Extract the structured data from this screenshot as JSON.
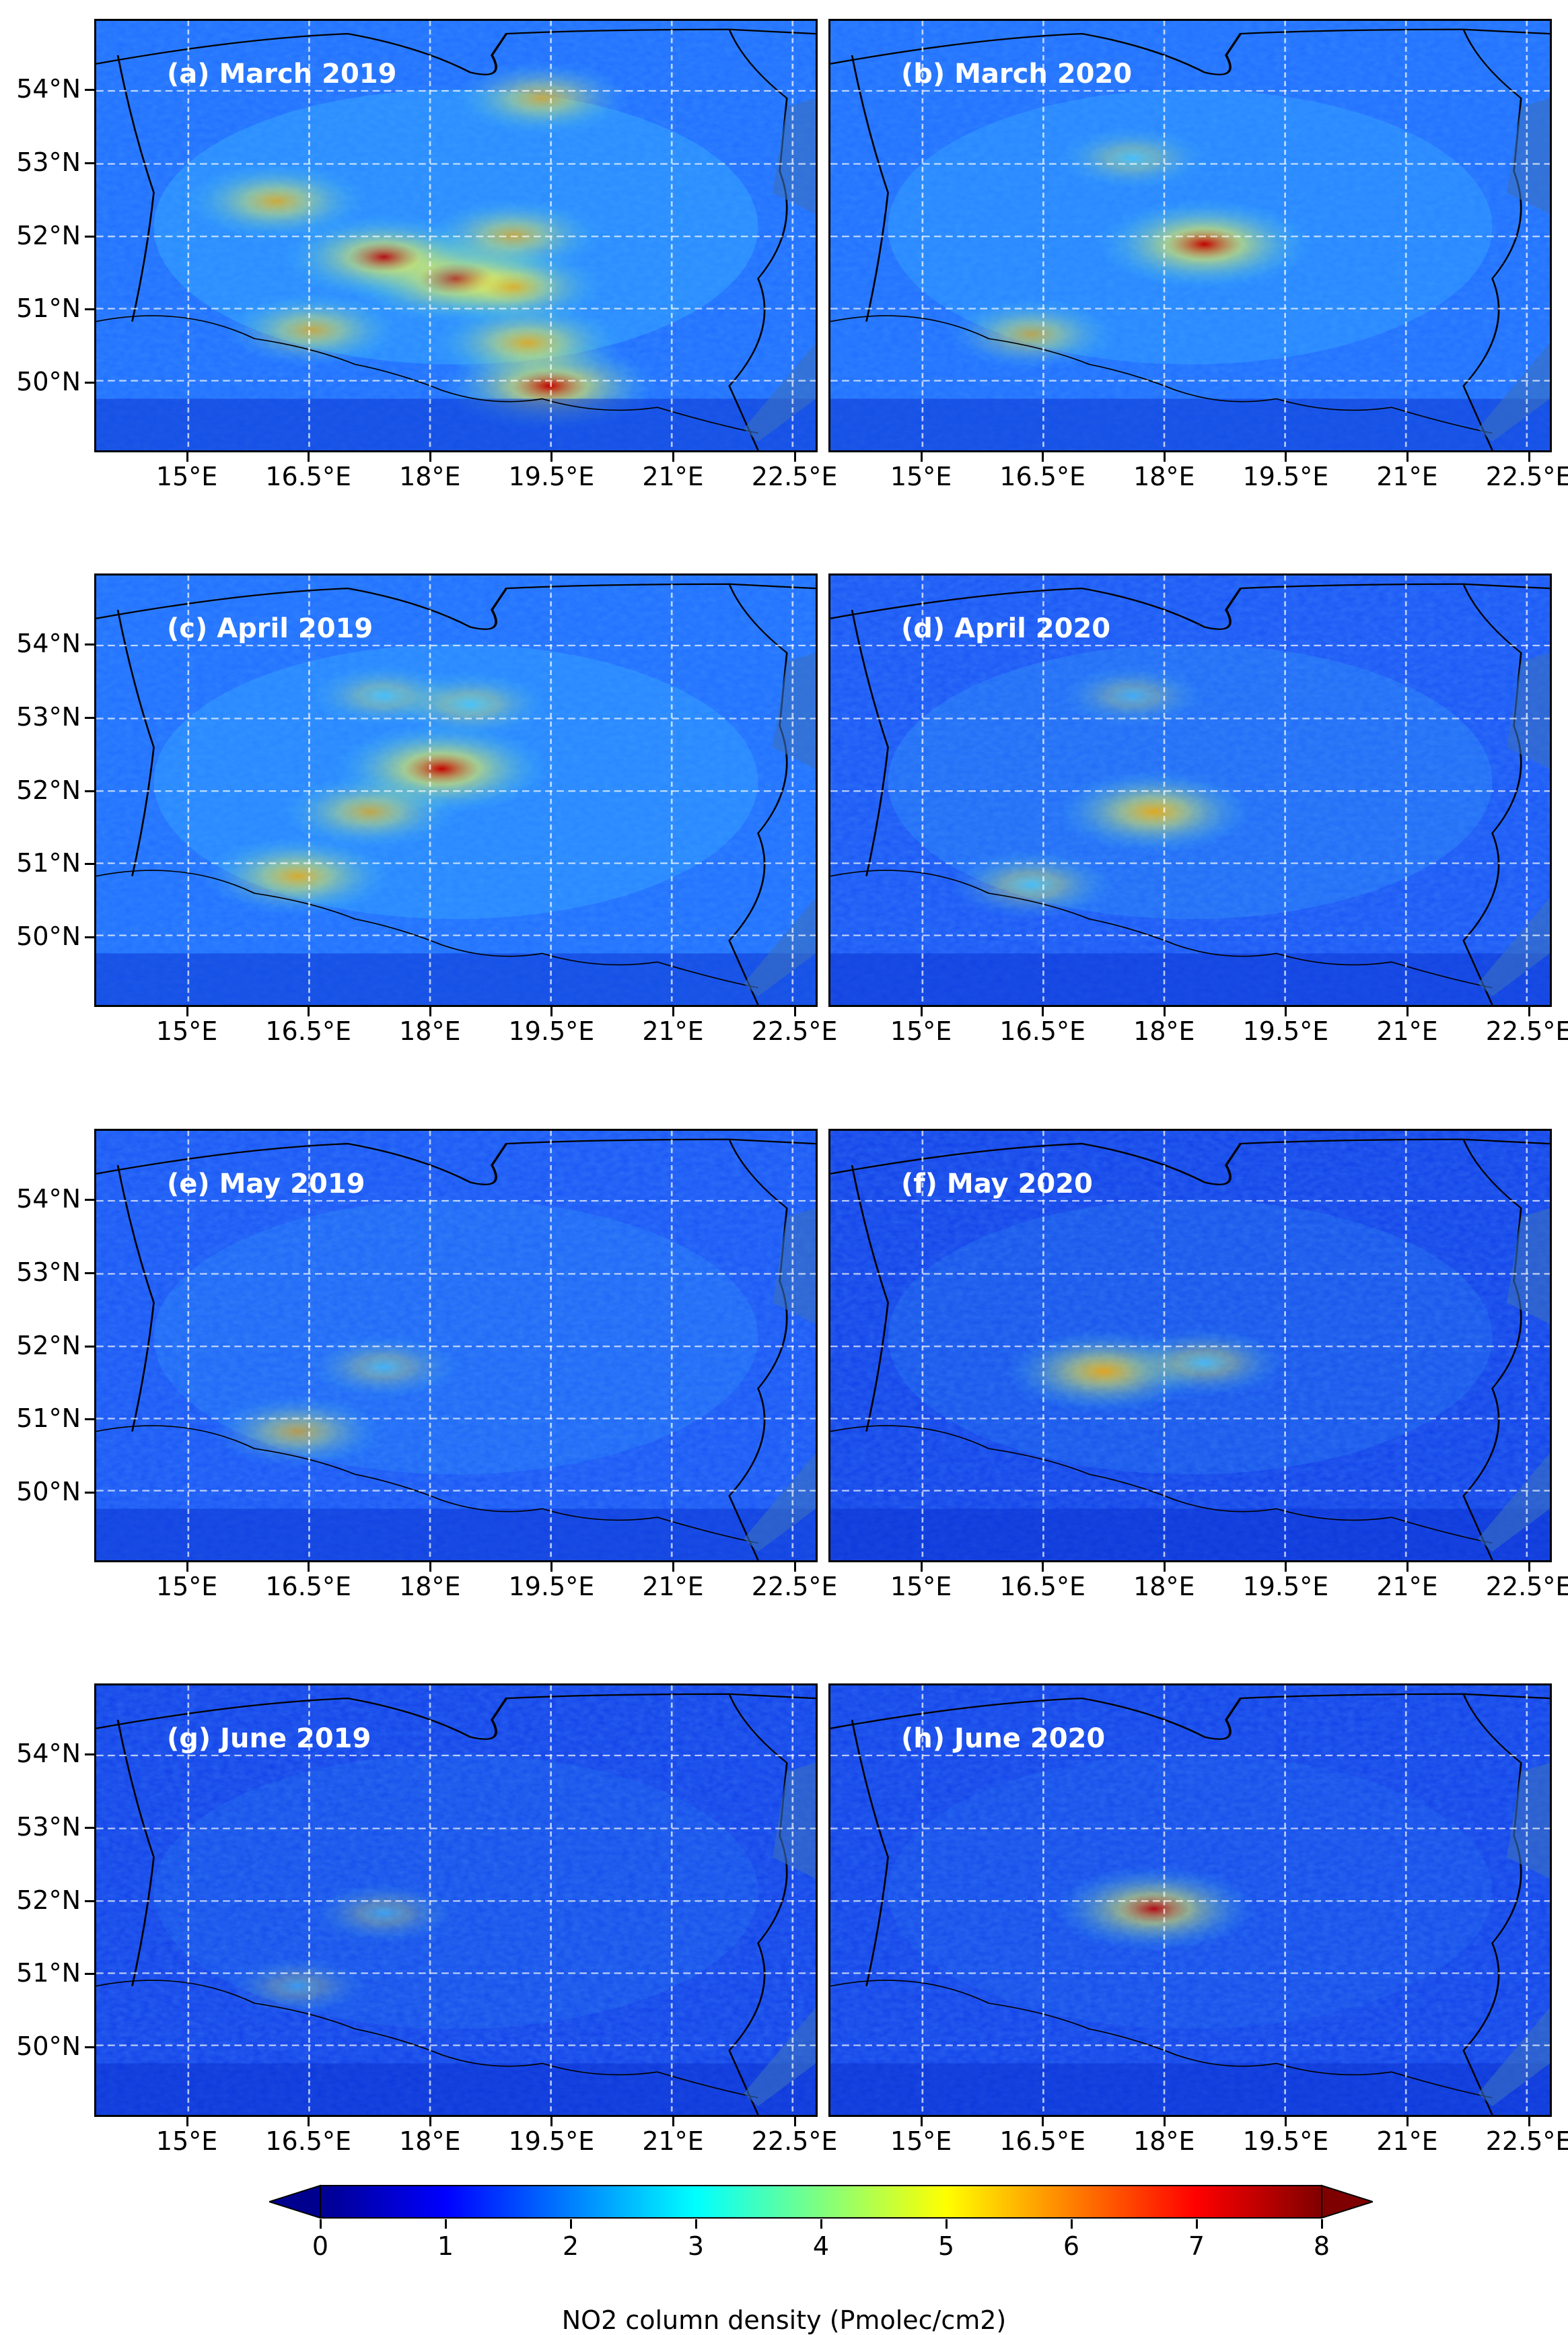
{
  "panels": [
    {
      "label": "(a) March 2019",
      "hot": [
        [
          60,
          50,
          1.0
        ],
        [
          55,
          40,
          0.9
        ],
        [
          42,
          25,
          0.75
        ],
        [
          85,
          63,
          1.0
        ],
        [
          62,
          58,
          0.75
        ],
        [
          50,
          58,
          0.7
        ],
        [
          75,
          60,
          0.8
        ],
        [
          72,
          30,
          0.7
        ],
        [
          18,
          62,
          0.7
        ]
      ],
      "base": 0.45
    },
    {
      "label": "(b) March 2020",
      "hot": [
        [
          52,
          52,
          1.0
        ],
        [
          73,
          28,
          0.65
        ],
        [
          32,
          42,
          0.5
        ]
      ],
      "base": 0.38
    },
    {
      "label": "(c) April 2019",
      "hot": [
        [
          45,
          48,
          1.0
        ],
        [
          70,
          28,
          0.8
        ],
        [
          55,
          38,
          0.7
        ],
        [
          28,
          40,
          0.5
        ],
        [
          30,
          52,
          0.55
        ]
      ],
      "base": 0.38
    },
    {
      "label": "(d) April 2020",
      "hot": [
        [
          55,
          45,
          0.85
        ],
        [
          72,
          28,
          0.6
        ],
        [
          28,
          42,
          0.45
        ]
      ],
      "base": 0.28
    },
    {
      "label": "(e) May 2019",
      "hot": [
        [
          70,
          28,
          0.65
        ],
        [
          55,
          40,
          0.5
        ]
      ],
      "base": 0.22
    },
    {
      "label": "(f) May 2020",
      "hot": [
        [
          56,
          38,
          0.85
        ],
        [
          54,
          52,
          0.6
        ]
      ],
      "base": 0.2
    },
    {
      "label": "(g) June 2019",
      "hot": [
        [
          70,
          28,
          0.4
        ],
        [
          53,
          40,
          0.45
        ]
      ],
      "base": 0.14
    },
    {
      "label": "(h) June 2020",
      "hot": [
        [
          52,
          45,
          0.9
        ]
      ],
      "base": 0.12
    }
  ],
  "axes": {
    "lon_ticks": [
      "15°E",
      "16.5°E",
      "18°E",
      "19.5°E",
      "21°E",
      "22.5°E"
    ],
    "lat_ticks": [
      "54°N",
      "53°N",
      "52°N",
      "51°N",
      "50°N"
    ]
  },
  "colorbar": {
    "ticks": [
      "0",
      "1",
      "2",
      "3",
      "4",
      "5",
      "6",
      "7",
      "8"
    ],
    "label": "NO2 column density (Pmolec/cm2)",
    "min": 0,
    "max": 8
  },
  "colors": {
    "low": "#00008f",
    "mid_low": "#1f4fff",
    "mid": "#36e0ff",
    "mid_high": "#c8ff3a",
    "high": "#ff3a00",
    "max": "#7f0000"
  }
}
